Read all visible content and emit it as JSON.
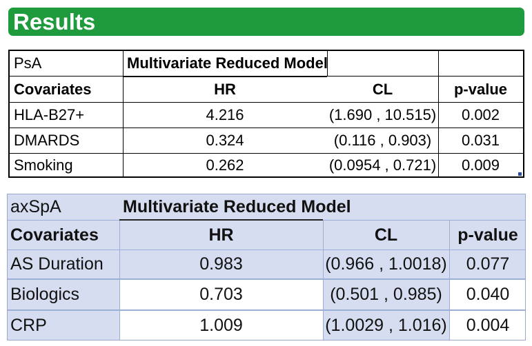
{
  "banner": {
    "title": "Results"
  },
  "psa": {
    "group_label": "PsA",
    "model_label": "Multivariate Reduced Model",
    "headers": {
      "covariates": "Covariates",
      "hr": "HR",
      "cl": "CL",
      "p": "p-value"
    },
    "rows": [
      {
        "covariate": "HLA-B27+",
        "hr": "4.216",
        "cl": "(1.690 , 10.515)",
        "p": "0.002"
      },
      {
        "covariate": "DMARDS",
        "hr": "0.324",
        "cl": "(0.116 , 0.903)",
        "p": "0.031"
      },
      {
        "covariate": "Smoking",
        "hr": "0.262",
        "cl": "(0.0954 , 0.721)",
        "p": "0.009"
      }
    ]
  },
  "axspa": {
    "group_label": "axSpA",
    "model_label": "Multivariate Reduced Model",
    "headers": {
      "covariates": "Covariates",
      "hr": "HR",
      "cl": "CL",
      "p": "p-value"
    },
    "rows": [
      {
        "covariate": "AS Duration",
        "hr": "0.983",
        "cl": "(0.966 , 1.0018)",
        "p": "0.077"
      },
      {
        "covariate": "Biologics",
        "hr": "0.703",
        "cl": "(0.501 , 0.985)",
        "p": "0.040"
      },
      {
        "covariate": "CRP",
        "hr": "1.009",
        "cl": "(1.0029 , 1.016)",
        "p": "0.004"
      }
    ]
  },
  "colors": {
    "banner": "#1f9a3c",
    "table2_fill": "#d6ddf0"
  }
}
